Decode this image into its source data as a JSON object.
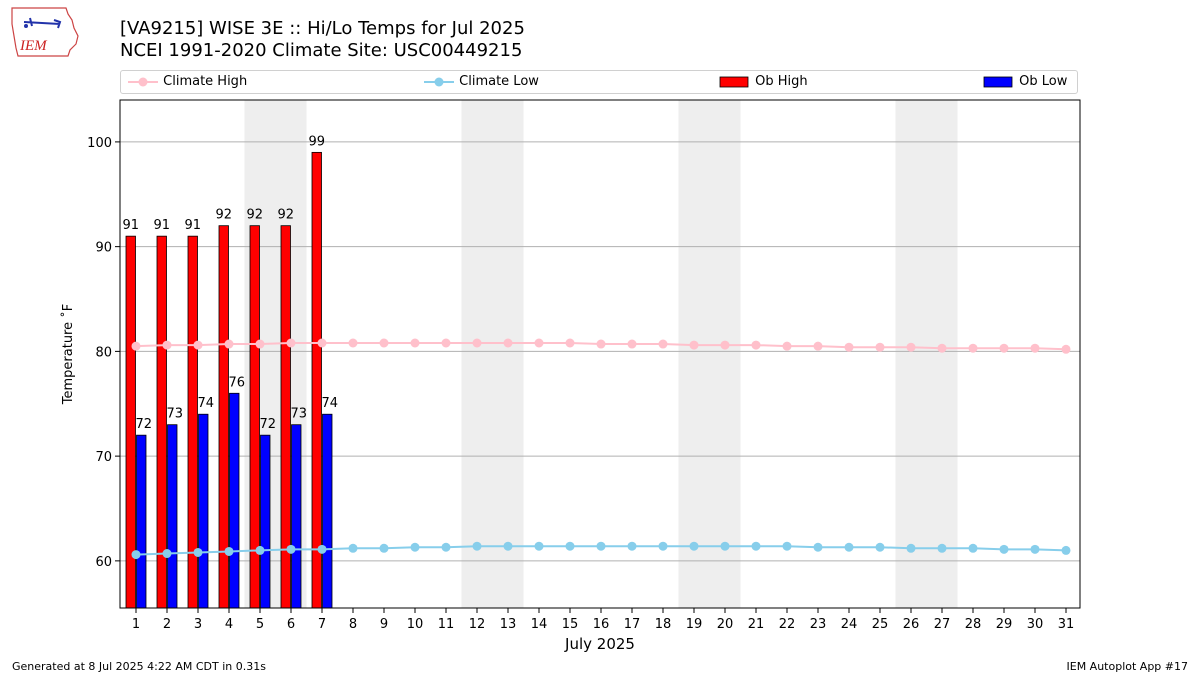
{
  "logo": {
    "text": "IEM"
  },
  "chart_data": {
    "type": "bar",
    "title": "[VA9215] WISE 3E :: Hi/Lo Temps for Jul 2025",
    "subtitle": "NCEI 1991-2020 Climate Site: USC00449215",
    "xlabel": "July 2025",
    "ylabel": "Temperature ˚F",
    "ylim": [
      55.5,
      104
    ],
    "yticks": [
      60,
      70,
      80,
      90,
      100
    ],
    "grid": true,
    "legend_position": "top",
    "weekend_days": [
      5,
      6,
      12,
      13,
      19,
      20,
      26,
      27
    ],
    "days": [
      1,
      2,
      3,
      4,
      5,
      6,
      7,
      8,
      9,
      10,
      11,
      12,
      13,
      14,
      15,
      16,
      17,
      18,
      19,
      20,
      21,
      22,
      23,
      24,
      25,
      26,
      27,
      28,
      29,
      30,
      31
    ],
    "series": [
      {
        "name": "Climate High",
        "kind": "line",
        "color": "#ffc0cb",
        "values": [
          80.5,
          80.6,
          80.6,
          80.7,
          80.7,
          80.8,
          80.8,
          80.8,
          80.8,
          80.8,
          80.8,
          80.8,
          80.8,
          80.8,
          80.8,
          80.7,
          80.7,
          80.7,
          80.6,
          80.6,
          80.6,
          80.5,
          80.5,
          80.4,
          80.4,
          80.4,
          80.3,
          80.3,
          80.3,
          80.3,
          80.2
        ]
      },
      {
        "name": "Climate Low",
        "kind": "line",
        "color": "#87ceeb",
        "values": [
          60.6,
          60.7,
          60.8,
          60.9,
          61.0,
          61.1,
          61.1,
          61.2,
          61.2,
          61.3,
          61.3,
          61.4,
          61.4,
          61.4,
          61.4,
          61.4,
          61.4,
          61.4,
          61.4,
          61.4,
          61.4,
          61.4,
          61.3,
          61.3,
          61.3,
          61.2,
          61.2,
          61.2,
          61.1,
          61.1,
          61.0
        ]
      },
      {
        "name": "Ob High",
        "kind": "bar",
        "color": "#ff0000",
        "values": [
          91,
          91,
          91,
          92,
          92,
          92,
          99
        ]
      },
      {
        "name": "Ob Low",
        "kind": "bar",
        "color": "#0000ff",
        "values": [
          72,
          73,
          74,
          76,
          72,
          73,
          74
        ]
      }
    ]
  },
  "footer": {
    "left": "Generated at 8 Jul 2025 4:22 AM CDT in 0.31s",
    "right": "IEM Autoplot App #17"
  }
}
